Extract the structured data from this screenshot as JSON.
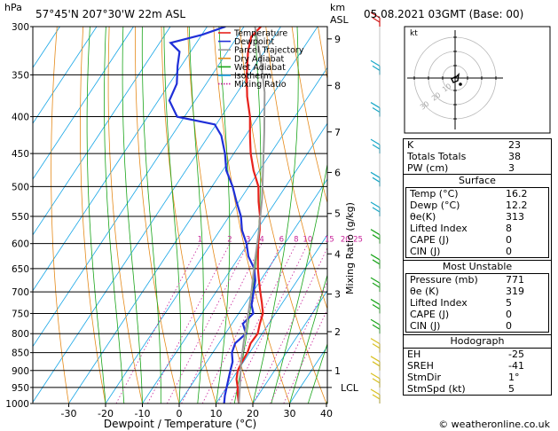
{
  "header": {
    "location": "57°45'N  207°30'W  22m  ASL",
    "datetime": "05.08.2021  03GMT  (Base: 00)",
    "hpa_label": "hPa",
    "km_label": "km",
    "asl_label": "ASL"
  },
  "footer": {
    "credit": "© weatheronline.co.uk"
  },
  "chart_data": {
    "type": "line",
    "title": "",
    "xlabel": "Dewpoint / Temperature (°C)",
    "ylabel": "hPa",
    "right_axis_label": "Mixing Ratio (g/kg)",
    "xlim": [
      -40,
      40
    ],
    "ylim": [
      1000,
      300
    ],
    "x_ticks": [
      "-30",
      "-20",
      "-10",
      "0",
      "10",
      "20",
      "30",
      "40"
    ],
    "pressure_levels": [
      300,
      350,
      400,
      450,
      500,
      550,
      600,
      650,
      700,
      750,
      800,
      850,
      900,
      950,
      1000
    ],
    "km_ticks": [
      {
        "km": "1",
        "p": 900
      },
      {
        "km": "2",
        "p": 795
      },
      {
        "km": "3",
        "p": 705
      },
      {
        "km": "4",
        "p": 620
      },
      {
        "km": "5",
        "p": 545
      },
      {
        "km": "6",
        "p": 478
      },
      {
        "km": "7",
        "p": 420
      },
      {
        "km": "8",
        "p": 362
      },
      {
        "km": "9",
        "p": 312
      }
    ],
    "lcl": {
      "label": "LCL",
      "p": 950
    },
    "mixing_ratio_labels": [
      "1",
      "2",
      "3",
      "4",
      "6",
      "8",
      "10",
      "15",
      "20",
      "25"
    ],
    "legend": [
      {
        "name": "Temperature",
        "color": "#e8221c"
      },
      {
        "name": "Dewpoint",
        "color": "#1f2fd8"
      },
      {
        "name": "Parcel Trajectory",
        "color": "#9a9a9a"
      },
      {
        "name": "Dry Adiabat",
        "color": "#e58a1a"
      },
      {
        "name": "Wet Adiabat",
        "color": "#1aa51a"
      },
      {
        "name": "Isotherm",
        "color": "#18a6e6"
      },
      {
        "name": "Mixing Ratio",
        "color": "#c8229a"
      }
    ],
    "series": [
      {
        "name": "Temperature",
        "color": "#e8221c",
        "points": [
          [
            16.2,
            1000
          ],
          [
            14.5,
            975
          ],
          [
            13,
            950
          ],
          [
            11.2,
            925
          ],
          [
            10,
            900
          ],
          [
            9.6,
            875
          ],
          [
            9.4,
            850
          ],
          [
            8.6,
            825
          ],
          [
            8.8,
            800
          ],
          [
            7.6,
            775
          ],
          [
            6.6,
            750
          ],
          [
            4.4,
            725
          ],
          [
            2,
            700
          ],
          [
            -0.4,
            675
          ],
          [
            -2.8,
            650
          ],
          [
            -5,
            625
          ],
          [
            -7.2,
            600
          ],
          [
            -9.2,
            575
          ],
          [
            -11.6,
            550
          ],
          [
            -14.6,
            525
          ],
          [
            -17.4,
            500
          ],
          [
            -21.6,
            475
          ],
          [
            -25.4,
            450
          ],
          [
            -28.8,
            425
          ],
          [
            -32.2,
            400
          ],
          [
            -36.6,
            375
          ],
          [
            -40.6,
            350
          ],
          [
            -44.4,
            325
          ],
          [
            -46.2,
            310
          ],
          [
            -45.4,
            300
          ]
        ]
      },
      {
        "name": "Dewpoint",
        "color": "#1f2fd8",
        "points": [
          [
            12.2,
            1000
          ],
          [
            11,
            975
          ],
          [
            10,
            950
          ],
          [
            9,
            925
          ],
          [
            8,
            900
          ],
          [
            7,
            875
          ],
          [
            5.2,
            850
          ],
          [
            4.4,
            825
          ],
          [
            5.6,
            800
          ],
          [
            3,
            775
          ],
          [
            4,
            750
          ],
          [
            2,
            730
          ],
          [
            0.2,
            700
          ],
          [
            -1.4,
            675
          ],
          [
            -3.8,
            650
          ],
          [
            -7.6,
            625
          ],
          [
            -10.4,
            600
          ],
          [
            -14,
            575
          ],
          [
            -16.8,
            550
          ],
          [
            -20.6,
            525
          ],
          [
            -24.4,
            500
          ],
          [
            -29,
            475
          ],
          [
            -32.4,
            450
          ],
          [
            -36.6,
            425
          ],
          [
            -40.4,
            410
          ],
          [
            -52,
            400
          ],
          [
            -57,
            380
          ],
          [
            -58,
            360
          ],
          [
            -61,
            340
          ],
          [
            -63,
            325
          ],
          [
            -67,
            316
          ],
          [
            -60,
            308
          ],
          [
            -55,
            300
          ]
        ]
      },
      {
        "name": "Parcel Trajectory",
        "color": "#9a9a9a",
        "points": [
          [
            16.2,
            1000
          ],
          [
            13.6,
            950
          ],
          [
            9.6,
            880
          ],
          [
            6.4,
            820
          ],
          [
            3.2,
            760
          ],
          [
            -0.4,
            700
          ],
          [
            -4.6,
            640
          ],
          [
            -9,
            580
          ],
          [
            -14.2,
            520
          ],
          [
            -19.6,
            470
          ],
          [
            -25.6,
            420
          ],
          [
            -32.6,
            370
          ],
          [
            -40.2,
            330
          ],
          [
            -47,
            300
          ]
        ]
      }
    ],
    "hodograph": {
      "label": "kt",
      "rings": [
        "10",
        "20",
        "30"
      ]
    },
    "wind_barbs": [
      300,
      350,
      400,
      450,
      500,
      550,
      600,
      650,
      700,
      750,
      800,
      850,
      900,
      950,
      1000
    ]
  },
  "indices": {
    "k": {
      "label": "K",
      "value": "23"
    },
    "tt": {
      "label": "Totals Totals",
      "value": "38"
    },
    "pw": {
      "label": "PW (cm)",
      "value": "3"
    }
  },
  "surface": {
    "title": "Surface",
    "rows": [
      {
        "label": "Temp (°C)",
        "value": "16.2"
      },
      {
        "label": "Dewp (°C)",
        "value": "12.2"
      },
      {
        "label": "θe(K)",
        "value": "313"
      },
      {
        "label": "Lifted Index",
        "value": "8"
      },
      {
        "label": "CAPE (J)",
        "value": "0"
      },
      {
        "label": "CIN (J)",
        "value": "0"
      }
    ]
  },
  "unstable": {
    "title": "Most Unstable",
    "rows": [
      {
        "label": "Pressure (mb)",
        "value": "771"
      },
      {
        "label": "θe (K)",
        "value": "319"
      },
      {
        "label": "Lifted Index",
        "value": "5"
      },
      {
        "label": "CAPE (J)",
        "value": "0"
      },
      {
        "label": "CIN (J)",
        "value": "0"
      }
    ]
  },
  "hodo_table": {
    "title": "Hodograph",
    "rows": [
      {
        "label": "EH",
        "value": "-25"
      },
      {
        "label": "SREH",
        "value": "-41"
      },
      {
        "label": "StmDir",
        "value": "1°"
      },
      {
        "label": "StmSpd (kt)",
        "value": "5"
      }
    ]
  }
}
